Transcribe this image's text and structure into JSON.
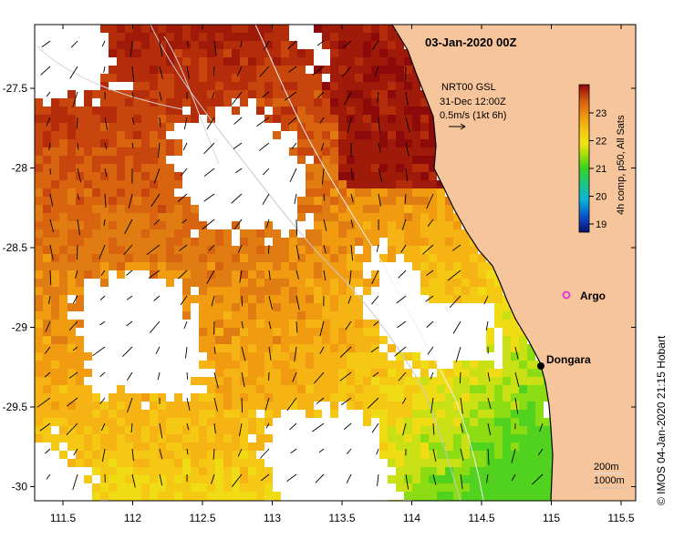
{
  "title": "03-Jan-2020 00Z",
  "current_info": {
    "line1": "NRT00 GSL",
    "line2": "31-Dec 12:00Z",
    "line3": "0.5m/s (1kt 6h)"
  },
  "colorbar": {
    "label": "4h comp, p50, All Sats",
    "ticks": [
      "23",
      "22",
      "21",
      "20",
      "19"
    ],
    "colors": [
      "#08106e",
      "#0a4dc8",
      "#0ab4d8",
      "#1ec878",
      "#3cd21e",
      "#a0dc0a",
      "#f0e614",
      "#f5c814",
      "#f09b10",
      "#d86410",
      "#b42c0a",
      "#8c0a0a"
    ]
  },
  "axes": {
    "x_ticks": [
      "111.5",
      "112",
      "112.5",
      "113",
      "113.5",
      "114",
      "114.5",
      "115",
      "115.5"
    ],
    "y_ticks": [
      "-27.5",
      "-28",
      "-28.5",
      "-29",
      "-29.5",
      "-30"
    ]
  },
  "places": {
    "argo": "Argo",
    "dongara": "Dongara"
  },
  "contours": {
    "c200": "200m",
    "c1000": "1000m"
  },
  "credit": "© IMOS 04-Jan-2020 21:15 Hobart",
  "colors": {
    "land": "#f7c59b",
    "argo": "#e030e0",
    "town": "#000000"
  }
}
